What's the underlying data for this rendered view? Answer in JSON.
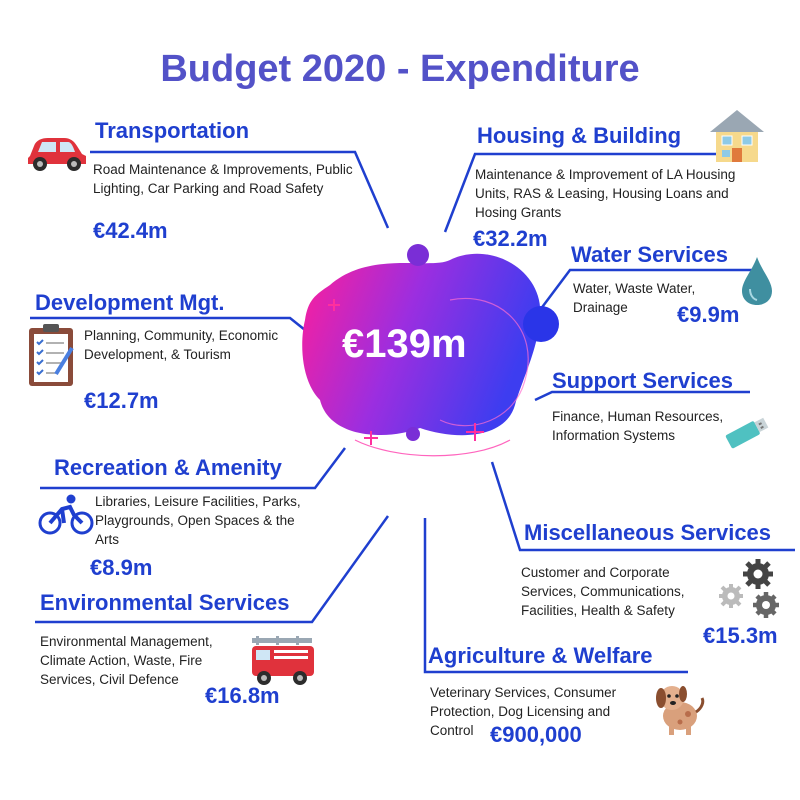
{
  "title": "Budget 2020 - Expenditure",
  "total": "€139m",
  "colors": {
    "title": "#5352c8",
    "accent": "#1f3fcf",
    "line": "#1f3fcf",
    "blob_start": "#ff1e9a",
    "blob_end": "#3d3df0"
  },
  "categories": {
    "transportation": {
      "name": "Transportation",
      "description": "Road Maintenance & Improvements, Public Lighting, Car Parking and Road Safety",
      "amount": "€42.4m",
      "icon": "car-icon"
    },
    "housing": {
      "name": "Housing & Building",
      "description": "Maintenance & Improvement of LA Housing Units, RAS & Leasing, Housing Loans and Hosing Grants",
      "amount": "€32.2m",
      "icon": "house-icon"
    },
    "water": {
      "name": "Water Services",
      "description": "Water, Waste Water, Drainage",
      "amount": "€9.9m",
      "icon": "water-drop-icon"
    },
    "development": {
      "name": "Development Mgt.",
      "description": "Planning, Community, Economic Development, & Tourism",
      "amount": "€12.7m",
      "icon": "clipboard-icon"
    },
    "support": {
      "name": "Support Services",
      "description": "Finance, Human Resources, Information Systems",
      "amount": "",
      "icon": "usb-stick-icon"
    },
    "recreation": {
      "name": "Recreation & Amenity",
      "description": "Libraries, Leisure Facilities, Parks, Playgrounds, Open Spaces & the Arts",
      "amount": "€8.9m",
      "icon": "cyclist-icon"
    },
    "miscellaneous": {
      "name": "Miscellaneous Services",
      "description": "Customer and Corporate Services, Communications, Facilities, Health & Safety",
      "amount": "€15.3m",
      "icon": "gears-icon"
    },
    "environmental": {
      "name": "Environmental Services",
      "description": "Environmental Management, Climate Action, Waste, Fire Services, Civil Defence",
      "amount": "€16.8m",
      "icon": "fire-engine-icon"
    },
    "agriculture": {
      "name": "Agriculture & Welfare",
      "description": "Veterinary Services, Consumer Protection, Dog Licensing and Control",
      "amount": "€900,000",
      "icon": "dog-icon"
    }
  }
}
